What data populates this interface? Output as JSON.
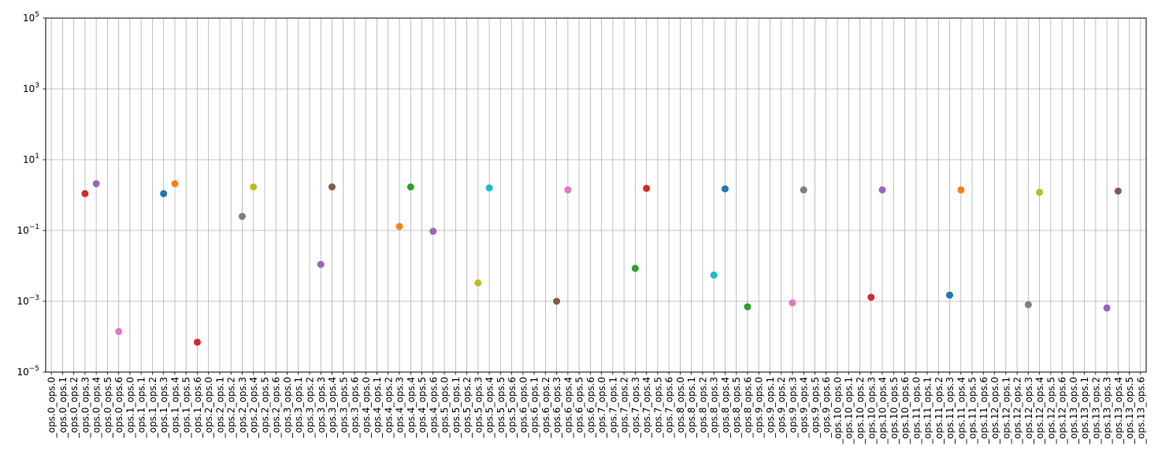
{
  "chart_data": {
    "type": "scatter",
    "title": "",
    "xlabel": "",
    "ylabel": "",
    "yscale": "log",
    "ylim": [
      1e-05,
      100000
    ],
    "grid": true,
    "legend": "none",
    "yticks": [
      {
        "base": "10",
        "exp": "5"
      },
      {
        "base": "10",
        "exp": "3"
      },
      {
        "base": "10",
        "exp": "1"
      },
      {
        "base": "10",
        "exp": "−1"
      },
      {
        "base": "10",
        "exp": "−3"
      },
      {
        "base": "10",
        "exp": "−5"
      }
    ],
    "ytick_values": [
      100000,
      1000,
      10,
      0.1,
      0.001,
      1e-05
    ],
    "categories": [
      "_ops.0_ops.0",
      "_ops.0_ops.1",
      "_ops.0_ops.2",
      "_ops.0_ops.3",
      "_ops.0_ops.4",
      "_ops.0_ops.5",
      "_ops.0_ops.6",
      "_ops.1_ops.0",
      "_ops.1_ops.1",
      "_ops.1_ops.2",
      "_ops.1_ops.3",
      "_ops.1_ops.4",
      "_ops.1_ops.5",
      "_ops.1_ops.6",
      "_ops.2_ops.0",
      "_ops.2_ops.1",
      "_ops.2_ops.2",
      "_ops.2_ops.3",
      "_ops.2_ops.4",
      "_ops.2_ops.5",
      "_ops.2_ops.6",
      "_ops.3_ops.0",
      "_ops.3_ops.1",
      "_ops.3_ops.2",
      "_ops.3_ops.3",
      "_ops.3_ops.4",
      "_ops.3_ops.5",
      "_ops.3_ops.6",
      "_ops.4_ops.0",
      "_ops.4_ops.1",
      "_ops.4_ops.2",
      "_ops.4_ops.3",
      "_ops.4_ops.4",
      "_ops.4_ops.5",
      "_ops.4_ops.6",
      "_ops.5_ops.0",
      "_ops.5_ops.1",
      "_ops.5_ops.2",
      "_ops.5_ops.3",
      "_ops.5_ops.4",
      "_ops.5_ops.5",
      "_ops.5_ops.6",
      "_ops.6_ops.0",
      "_ops.6_ops.1",
      "_ops.6_ops.2",
      "_ops.6_ops.3",
      "_ops.6_ops.4",
      "_ops.6_ops.5",
      "_ops.6_ops.6",
      "_ops.7_ops.0",
      "_ops.7_ops.1",
      "_ops.7_ops.2",
      "_ops.7_ops.3",
      "_ops.7_ops.4",
      "_ops.7_ops.5",
      "_ops.7_ops.6",
      "_ops.8_ops.0",
      "_ops.8_ops.1",
      "_ops.8_ops.2",
      "_ops.8_ops.3",
      "_ops.8_ops.4",
      "_ops.8_ops.5",
      "_ops.8_ops.6",
      "_ops.9_ops.0",
      "_ops.9_ops.1",
      "_ops.9_ops.2",
      "_ops.9_ops.3",
      "_ops.9_ops.4",
      "_ops.9_ops.5",
      "_ops.9_ops.6",
      "_ops.10_ops.0",
      "_ops.10_ops.1",
      "_ops.10_ops.2",
      "_ops.10_ops.3",
      "_ops.10_ops.4",
      "_ops.10_ops.5",
      "_ops.10_ops.6",
      "_ops.11_ops.0",
      "_ops.11_ops.1",
      "_ops.11_ops.2",
      "_ops.11_ops.3",
      "_ops.11_ops.4",
      "_ops.11_ops.5",
      "_ops.11_ops.6",
      "_ops.12_ops.0",
      "_ops.12_ops.1",
      "_ops.12_ops.2",
      "_ops.12_ops.3",
      "_ops.12_ops.4",
      "_ops.12_ops.5",
      "_ops.12_ops.6",
      "_ops.13_ops.0",
      "_ops.13_ops.1",
      "_ops.13_ops.2",
      "_ops.13_ops.3",
      "_ops.13_ops.4",
      "_ops.13_ops.5",
      "_ops.13_ops.6"
    ],
    "points": [
      {
        "x": "_ops.0_ops.3",
        "y": 1.1,
        "color": "#d62728"
      },
      {
        "x": "_ops.0_ops.4",
        "y": 2.1,
        "color": "#9467bd"
      },
      {
        "x": "_ops.0_ops.6",
        "y": 0.00014,
        "color": "#e377c2"
      },
      {
        "x": "_ops.1_ops.3",
        "y": 1.1,
        "color": "#1f77b4"
      },
      {
        "x": "_ops.1_ops.4",
        "y": 2.1,
        "color": "#ff7f0e"
      },
      {
        "x": "_ops.1_ops.6",
        "y": 7e-05,
        "color": "#d62728"
      },
      {
        "x": "_ops.2_ops.3",
        "y": 0.25,
        "color": "#7f7f7f"
      },
      {
        "x": "_ops.2_ops.4",
        "y": 1.7,
        "color": "#bcbd22"
      },
      {
        "x": "_ops.3_ops.3",
        "y": 0.011,
        "color": "#9467bd"
      },
      {
        "x": "_ops.3_ops.4",
        "y": 1.7,
        "color": "#8c564b"
      },
      {
        "x": "_ops.4_ops.3",
        "y": 0.13,
        "color": "#ff7f0e"
      },
      {
        "x": "_ops.4_ops.4",
        "y": 1.7,
        "color": "#2ca02c"
      },
      {
        "x": "_ops.4_ops.6",
        "y": 0.095,
        "color": "#9467bd"
      },
      {
        "x": "_ops.5_ops.3",
        "y": 0.0033,
        "color": "#bcbd22"
      },
      {
        "x": "_ops.5_ops.4",
        "y": 1.6,
        "color": "#17becf"
      },
      {
        "x": "_ops.6_ops.3",
        "y": 0.001,
        "color": "#8c564b"
      },
      {
        "x": "_ops.6_ops.4",
        "y": 1.4,
        "color": "#e377c2"
      },
      {
        "x": "_ops.7_ops.3",
        "y": 0.0085,
        "color": "#2ca02c"
      },
      {
        "x": "_ops.7_ops.4",
        "y": 1.55,
        "color": "#d62728"
      },
      {
        "x": "_ops.8_ops.3",
        "y": 0.0055,
        "color": "#17becf"
      },
      {
        "x": "_ops.8_ops.4",
        "y": 1.5,
        "color": "#1f77b4"
      },
      {
        "x": "_ops.8_ops.6",
        "y": 0.0007,
        "color": "#2ca02c"
      },
      {
        "x": "_ops.9_ops.3",
        "y": 0.0009,
        "color": "#e377c2"
      },
      {
        "x": "_ops.9_ops.4",
        "y": 1.4,
        "color": "#7f7f7f"
      },
      {
        "x": "_ops.10_ops.3",
        "y": 0.0013,
        "color": "#d62728"
      },
      {
        "x": "_ops.10_ops.4",
        "y": 1.4,
        "color": "#9467bd"
      },
      {
        "x": "_ops.11_ops.3",
        "y": 0.0015,
        "color": "#1f77b4"
      },
      {
        "x": "_ops.11_ops.4",
        "y": 1.4,
        "color": "#ff7f0e"
      },
      {
        "x": "_ops.12_ops.3",
        "y": 0.0008,
        "color": "#7f7f7f"
      },
      {
        "x": "_ops.12_ops.4",
        "y": 1.2,
        "color": "#bcbd22"
      },
      {
        "x": "_ops.13_ops.3",
        "y": 0.00065,
        "color": "#9467bd"
      },
      {
        "x": "_ops.13_ops.4",
        "y": 1.3,
        "color": "#8c564b"
      }
    ]
  }
}
